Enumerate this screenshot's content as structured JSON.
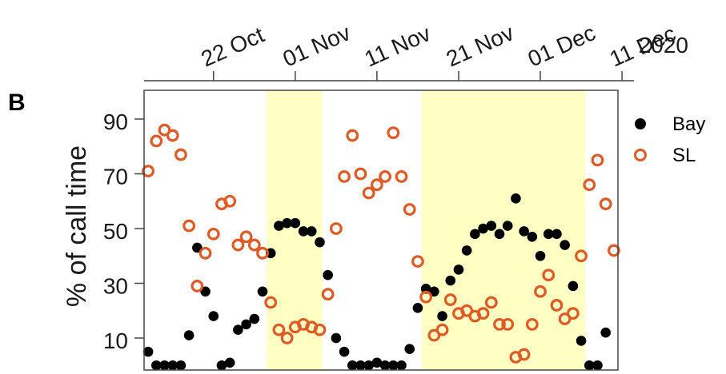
{
  "panel_label": "B",
  "year_label": "2020",
  "chart_data": {
    "type": "scatter",
    "ylabel": "% of call time",
    "xlabel": "",
    "yticks": [
      10,
      30,
      50,
      70,
      90
    ],
    "ylim": [
      0,
      100
    ],
    "xlim_day": [
      13.5,
      71.5
    ],
    "xticks": [
      {
        "label": "22 Oct",
        "day": 22
      },
      {
        "label": "01 Nov",
        "day": 32
      },
      {
        "label": "11 Nov",
        "day": 42
      },
      {
        "label": "21 Nov",
        "day": 52
      },
      {
        "label": "01 Dec",
        "day": 62
      },
      {
        "label": "11 Dec",
        "day": 72
      }
    ],
    "shaded_periods": [
      {
        "start_day": 28.5,
        "end_day": 35.3,
        "color": "#ffffc4"
      },
      {
        "start_day": 47.5,
        "end_day": 67.5,
        "color": "#ffffc4"
      }
    ],
    "grid": false,
    "legend_position": "right",
    "series": [
      {
        "name": "Bay",
        "marker": "filled-circle",
        "color": "#000000",
        "points": [
          [
            14,
            5
          ],
          [
            15,
            0
          ],
          [
            16,
            0
          ],
          [
            17,
            0
          ],
          [
            18,
            0
          ],
          [
            19,
            11
          ],
          [
            20,
            43
          ],
          [
            21,
            27
          ],
          [
            22,
            18
          ],
          [
            23,
            0
          ],
          [
            24,
            1
          ],
          [
            25,
            13
          ],
          [
            26,
            15
          ],
          [
            27,
            17
          ],
          [
            28,
            27
          ],
          [
            29,
            41
          ],
          [
            30,
            51
          ],
          [
            31,
            52
          ],
          [
            32,
            52
          ],
          [
            33,
            49
          ],
          [
            34,
            49
          ],
          [
            35,
            45
          ],
          [
            36,
            33
          ],
          [
            37,
            10
          ],
          [
            38,
            5
          ],
          [
            39,
            0
          ],
          [
            40,
            0
          ],
          [
            41,
            0
          ],
          [
            42,
            1
          ],
          [
            43,
            0
          ],
          [
            44,
            0
          ],
          [
            45,
            0
          ],
          [
            46,
            6
          ],
          [
            47,
            21
          ],
          [
            48,
            28
          ],
          [
            49,
            27
          ],
          [
            50,
            18
          ],
          [
            51,
            31
          ],
          [
            52,
            35
          ],
          [
            53,
            42
          ],
          [
            54,
            48
          ],
          [
            55,
            50
          ],
          [
            56,
            51
          ],
          [
            57,
            48
          ],
          [
            58,
            51
          ],
          [
            59,
            61
          ],
          [
            60,
            49
          ],
          [
            61,
            47
          ],
          [
            62,
            40
          ],
          [
            63,
            48
          ],
          [
            64,
            48
          ],
          [
            65,
            44
          ],
          [
            66,
            29
          ],
          [
            67,
            9
          ],
          [
            68,
            0
          ],
          [
            69,
            0
          ],
          [
            70,
            12
          ]
        ]
      },
      {
        "name": "SL",
        "marker": "open-circle",
        "color": "#de5b26",
        "points": [
          [
            14,
            71
          ],
          [
            15,
            82
          ],
          [
            16,
            86
          ],
          [
            17,
            84
          ],
          [
            18,
            77
          ],
          [
            19,
            51
          ],
          [
            20,
            29
          ],
          [
            21,
            41
          ],
          [
            22,
            48
          ],
          [
            23,
            59
          ],
          [
            24,
            60
          ],
          [
            25,
            44
          ],
          [
            26,
            47
          ],
          [
            27,
            44
          ],
          [
            28,
            41
          ],
          [
            29,
            23
          ],
          [
            30,
            13
          ],
          [
            31,
            10
          ],
          [
            32,
            14
          ],
          [
            33,
            15
          ],
          [
            34,
            14
          ],
          [
            35,
            13
          ],
          [
            36,
            26
          ],
          [
            37,
            50
          ],
          [
            38,
            69
          ],
          [
            39,
            84
          ],
          [
            40,
            70
          ],
          [
            41,
            63
          ],
          [
            42,
            66
          ],
          [
            43,
            69
          ],
          [
            44,
            85
          ],
          [
            45,
            69
          ],
          [
            46,
            57
          ],
          [
            47,
            38
          ],
          [
            48,
            25
          ],
          [
            49,
            11
          ],
          [
            50,
            13
          ],
          [
            51,
            24
          ],
          [
            52,
            19
          ],
          [
            53,
            20
          ],
          [
            54,
            18
          ],
          [
            55,
            19
          ],
          [
            56,
            23
          ],
          [
            57,
            15
          ],
          [
            58,
            15
          ],
          [
            59,
            3
          ],
          [
            60,
            4
          ],
          [
            61,
            15
          ],
          [
            62,
            27
          ],
          [
            63,
            33
          ],
          [
            64,
            22
          ],
          [
            65,
            17
          ],
          [
            66,
            19
          ],
          [
            67,
            40
          ],
          [
            68,
            66
          ],
          [
            69,
            75
          ],
          [
            70,
            59
          ],
          [
            71,
            42
          ]
        ]
      }
    ]
  }
}
